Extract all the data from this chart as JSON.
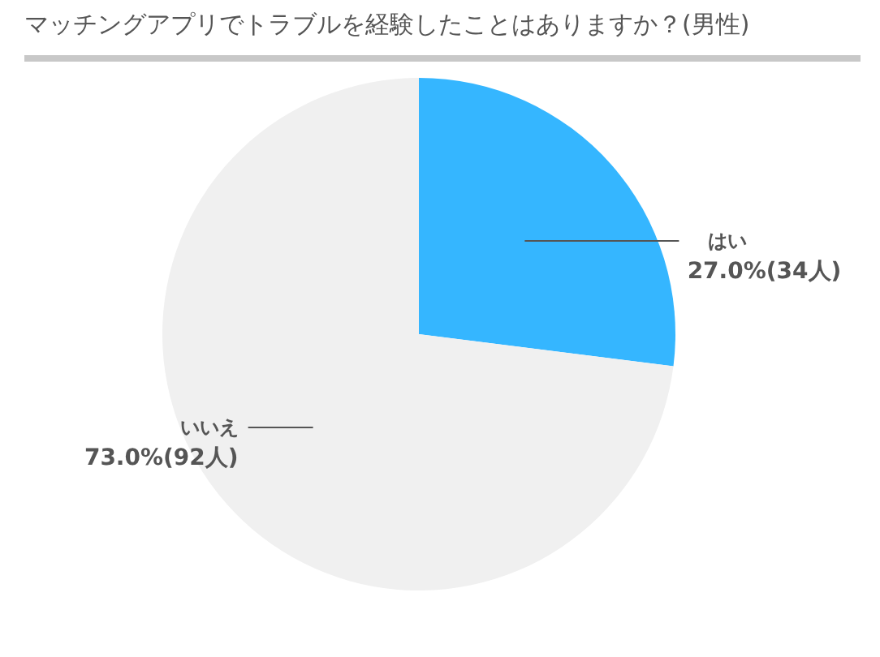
{
  "chart_data": {
    "type": "pie",
    "title": "マッチングアプリでトラブルを経験したことはありますか？(男性)",
    "categories": [
      "はい",
      "いいえ"
    ],
    "values": [
      27.0,
      73.0
    ],
    "colors": [
      "#35b6ff",
      "#f0f0f0"
    ],
    "value_labels": [
      "27.0%(34人)",
      "73.0%(92人)"
    ]
  }
}
